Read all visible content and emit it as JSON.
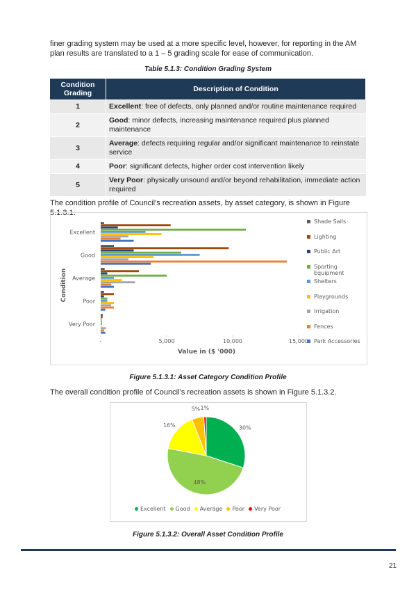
{
  "intro": "finer grading system may be used at a more specific level, however, for reporting in the AM plan results are translated to a 1 – 5 grading scale for ease of communication.",
  "table_caption": "Table 5.1.3: Condition Grading System",
  "table": {
    "header": [
      "Condition Grading",
      "Description of Condition"
    ],
    "rows": [
      {
        "grade": "1",
        "term": "Excellent",
        "text": ": free of defects, only planned and/or routine maintenance required"
      },
      {
        "grade": "2",
        "term": "Good",
        "text": ": minor defects, increasing maintenance required plus planned maintenance"
      },
      {
        "grade": "3",
        "term": "Average",
        "text": ": defects requiring regular and/or significant maintenance to reinstate service"
      },
      {
        "grade": "4",
        "term": "Poor",
        "text": ": significant defects, higher order cost intervention likely"
      },
      {
        "grade": "5",
        "term": "Very Poor",
        "text": ": physically unsound and/or beyond rehabilitation, immediate action required"
      }
    ]
  },
  "paragraph_2": "The condition profile of Council’s recreation assets, by asset category, is shown in Figure 5.1.3.1.",
  "chart_data": [
    {
      "type": "hbar",
      "xlabel": "Value in ($ '000)",
      "ylabel": "Condition",
      "categories": [
        "Excellent",
        "Good",
        "Average",
        "Poor",
        "Very Poor"
      ],
      "xlim": [
        0,
        15000
      ],
      "xticks": [
        {
          "value": 0,
          "label": "-"
        },
        {
          "value": 5000,
          "label": "5,000"
        },
        {
          "value": 10000,
          "label": "10,000"
        },
        {
          "value": 15000,
          "label": "15,000"
        }
      ],
      "series": [
        {
          "name": "Shade Sails",
          "color": "#595959",
          "values": [
            250,
            1000,
            300,
            250,
            150
          ]
        },
        {
          "name": "Lighting",
          "color": "#9e480e",
          "values": [
            5300,
            9700,
            2900,
            1000,
            150
          ]
        },
        {
          "name": "Public Art",
          "color": "#264478",
          "values": [
            1300,
            2500,
            500,
            250,
            50
          ]
        },
        {
          "name": "Sporting Equipment",
          "color": "#70ad47",
          "values": [
            11000,
            6100,
            5000,
            500,
            100
          ]
        },
        {
          "name": "Shelters",
          "color": "#5b9bd5",
          "values": [
            3400,
            7500,
            1000,
            500,
            100
          ]
        },
        {
          "name": "Playgrounds",
          "color": "#ffc000",
          "values": [
            4600,
            4000,
            1600,
            1000,
            50
          ]
        },
        {
          "name": "Irrigation",
          "color": "#a5a5a5",
          "values": [
            2100,
            2100,
            2600,
            800,
            400
          ]
        },
        {
          "name": "Fences",
          "color": "#ed7d31",
          "values": [
            1500,
            14100,
            800,
            1000,
            250
          ]
        },
        {
          "name": "Park Accessories",
          "color": "#4472c4",
          "values": [
            2500,
            3800,
            1000,
            350,
            350
          ]
        }
      ]
    },
    {
      "type": "pie",
      "categories": [
        "Excellent",
        "Good",
        "Average",
        "Poor",
        "Very Poor"
      ],
      "values": [
        30,
        48,
        16,
        5,
        1
      ],
      "value_labels": [
        "30%",
        "48%",
        "16%",
        "5%",
        "1%"
      ],
      "colors": [
        "#00b050",
        "#92d050",
        "#ffff00",
        "#ffc000",
        "#ff0000"
      ]
    }
  ],
  "figure_1_caption": "Figure 5.1.3.1:  Asset Category Condition Profile",
  "paragraph_3": "The overall condition profile of Council’s recreation assets is shown in Figure 5.1.3.2.",
  "figure_2_caption": "Figure 5.1.3.2:  Overall Asset Condition Profile",
  "page_number": "21"
}
